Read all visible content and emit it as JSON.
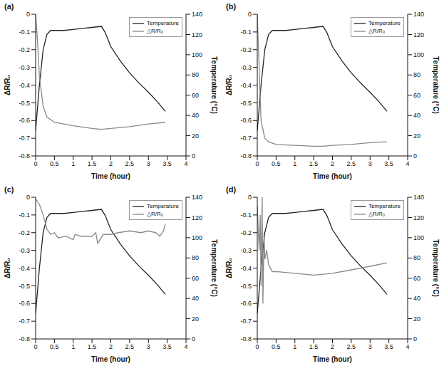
{
  "chart_data": [
    {
      "type": "line",
      "title": "(a)",
      "x_label": "Time (hour)",
      "y_label": "ΔR/R₀",
      "y2_label": "Temperature (°C)",
      "xlim": [
        0,
        4
      ],
      "xticks": [
        0,
        0.5,
        1,
        1.5,
        2,
        2.5,
        3,
        3.5,
        4
      ],
      "ylim": [
        -0.8,
        0
      ],
      "yticks": [
        -0.8,
        -0.7,
        -0.6,
        -0.5,
        -0.4,
        -0.3,
        -0.2,
        -0.1,
        0
      ],
      "y2lim": [
        0,
        140
      ],
      "y2ticks": [
        0,
        20,
        40,
        60,
        80,
        100,
        120,
        140
      ],
      "legend": "upper right",
      "series": [
        {
          "name": "Temperature",
          "color": "#222222",
          "axis": "y2",
          "x": [
            0,
            0.1,
            0.2,
            0.3,
            0.4,
            0.5,
            0.75,
            1,
            1.25,
            1.5,
            1.75,
            1.85,
            2,
            2.25,
            2.5,
            2.75,
            3,
            3.25,
            3.45
          ],
          "values": [
            25,
            70,
            105,
            120,
            124,
            124,
            124,
            125,
            126,
            127,
            128,
            122,
            108,
            94,
            82,
            72,
            63,
            53,
            44
          ]
        },
        {
          "name": "△R/R₀",
          "color": "#888888",
          "axis": "y",
          "x": [
            0,
            0.05,
            0.1,
            0.2,
            0.3,
            0.5,
            1,
            1.5,
            1.75,
            2,
            2.5,
            3,
            3.45
          ],
          "values": [
            0,
            -0.15,
            -0.35,
            -0.52,
            -0.58,
            -0.61,
            -0.63,
            -0.645,
            -0.65,
            -0.645,
            -0.635,
            -0.62,
            -0.61
          ]
        }
      ]
    },
    {
      "type": "line",
      "title": "(b)",
      "x_label": "Time (hour)",
      "y_label": "ΔR/R₀",
      "y2_label": "Temperature (°C)",
      "xlim": [
        0,
        4
      ],
      "xticks": [
        0,
        0.5,
        1,
        1.5,
        2,
        2.5,
        3,
        3.5,
        4
      ],
      "ylim": [
        -0.8,
        0
      ],
      "yticks": [
        -0.8,
        -0.7,
        -0.6,
        -0.5,
        -0.4,
        -0.3,
        -0.2,
        -0.1,
        0
      ],
      "y2lim": [
        0,
        140
      ],
      "y2ticks": [
        0,
        20,
        40,
        60,
        80,
        100,
        120,
        140
      ],
      "legend": "upper right",
      "series": [
        {
          "name": "Temperature",
          "color": "#222222",
          "axis": "y2",
          "x": [
            0,
            0.1,
            0.2,
            0.3,
            0.4,
            0.5,
            0.75,
            1,
            1.25,
            1.5,
            1.75,
            1.85,
            2,
            2.25,
            2.5,
            2.75,
            3,
            3.25,
            3.45
          ],
          "values": [
            25,
            70,
            105,
            120,
            124,
            124,
            124,
            125,
            126,
            127,
            128,
            122,
            108,
            94,
            82,
            72,
            63,
            53,
            44
          ]
        },
        {
          "name": "△R/R₀",
          "color": "#888888",
          "axis": "y",
          "x": [
            0,
            0.05,
            0.1,
            0.2,
            0.3,
            0.5,
            1,
            1.5,
            1.75,
            2,
            2.5,
            3,
            3.45
          ],
          "values": [
            0,
            -0.3,
            -0.6,
            -0.7,
            -0.72,
            -0.735,
            -0.74,
            -0.745,
            -0.745,
            -0.74,
            -0.735,
            -0.725,
            -0.72
          ]
        }
      ]
    },
    {
      "type": "line",
      "title": "(c)",
      "x_label": "Time (hour)",
      "y_label": "ΔR/R₀",
      "y2_label": "Temperature (°C)",
      "xlim": [
        0,
        4
      ],
      "xticks": [
        0,
        0.5,
        1,
        1.5,
        2,
        2.5,
        3,
        3.5,
        4
      ],
      "ylim": [
        -0.8,
        0
      ],
      "yticks": [
        -0.8,
        -0.7,
        -0.6,
        -0.5,
        -0.4,
        -0.3,
        -0.2,
        -0.1,
        0
      ],
      "y2lim": [
        0,
        140
      ],
      "y2ticks": [
        0,
        20,
        40,
        60,
        80,
        100,
        120,
        140
      ],
      "legend": "upper right",
      "series": [
        {
          "name": "Temperature",
          "color": "#222222",
          "axis": "y2",
          "x": [
            0,
            0.1,
            0.2,
            0.3,
            0.4,
            0.5,
            0.75,
            1,
            1.25,
            1.5,
            1.75,
            1.85,
            2,
            2.25,
            2.5,
            2.75,
            3,
            3.25,
            3.45
          ],
          "values": [
            25,
            70,
            105,
            120,
            124,
            124,
            124,
            125,
            126,
            127,
            128,
            122,
            108,
            94,
            82,
            72,
            63,
            53,
            44
          ]
        },
        {
          "name": "△R/R₀",
          "color": "#888888",
          "axis": "y",
          "x": [
            0,
            0.1,
            0.2,
            0.3,
            0.4,
            0.5,
            0.6,
            0.8,
            1,
            1.05,
            1.2,
            1.5,
            1.6,
            1.65,
            1.8,
            2,
            2.2,
            2.5,
            2.8,
            3,
            3.2,
            3.3,
            3.4,
            3.45
          ],
          "values": [
            -0.01,
            -0.04,
            -0.1,
            -0.18,
            -0.21,
            -0.2,
            -0.23,
            -0.22,
            -0.24,
            -0.21,
            -0.22,
            -0.22,
            -0.2,
            -0.26,
            -0.21,
            -0.21,
            -0.2,
            -0.19,
            -0.2,
            -0.19,
            -0.2,
            -0.22,
            -0.19,
            -0.15
          ]
        }
      ]
    },
    {
      "type": "line",
      "title": "(d)",
      "x_label": "Time (hour)",
      "y_label": "ΔR/R₀",
      "y2_label": "Temperature (°C)",
      "xlim": [
        0,
        4
      ],
      "xticks": [
        0,
        0.5,
        1,
        1.5,
        2,
        2.5,
        3,
        3.5,
        4
      ],
      "ylim": [
        -0.8,
        0
      ],
      "yticks": [
        -0.8,
        -0.7,
        -0.6,
        -0.5,
        -0.4,
        -0.3,
        -0.2,
        -0.1,
        0
      ],
      "y2lim": [
        0,
        140
      ],
      "y2ticks": [
        0,
        20,
        40,
        60,
        80,
        100,
        120,
        140
      ],
      "legend": "upper right",
      "series": [
        {
          "name": "Temperature",
          "color": "#222222",
          "axis": "y2",
          "x": [
            0,
            0.1,
            0.2,
            0.3,
            0.4,
            0.5,
            0.75,
            1,
            1.25,
            1.5,
            1.75,
            1.85,
            2,
            2.25,
            2.5,
            2.75,
            3,
            3.25,
            3.45
          ],
          "values": [
            25,
            70,
            105,
            120,
            124,
            124,
            124,
            125,
            126,
            127,
            128,
            122,
            108,
            94,
            82,
            72,
            63,
            53,
            44
          ]
        },
        {
          "name": "△R/R₀",
          "color": "#888888",
          "axis": "y",
          "x": [
            0,
            0.05,
            0.08,
            0.1,
            0.13,
            0.15,
            0.18,
            0.2,
            0.25,
            0.3,
            0.4,
            0.5,
            1,
            1.5,
            2,
            2.5,
            3,
            3.45
          ],
          "values": [
            -0.05,
            -0.3,
            -0.1,
            -0.5,
            0,
            -0.6,
            -0.2,
            -0.35,
            -0.3,
            -0.38,
            -0.42,
            -0.42,
            -0.43,
            -0.44,
            -0.43,
            -0.41,
            -0.39,
            -0.37
          ]
        }
      ]
    }
  ]
}
